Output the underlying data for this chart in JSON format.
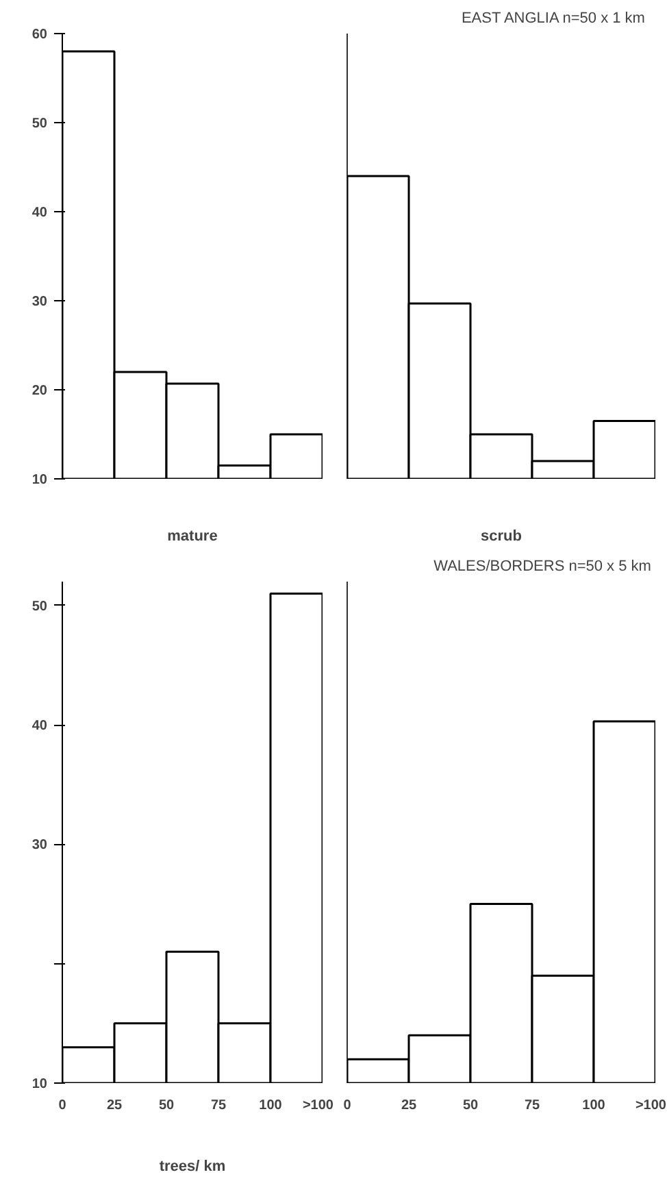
{
  "chart_data": [
    {
      "type": "histogram",
      "bins": [
        0,
        25,
        50,
        75,
        100,
        125
      ],
      "values": [
        58,
        22,
        20.7,
        11.5,
        15
      ],
      "color": "#ffffff",
      "xlabel": "mature",
      "xlim": [
        0,
        125
      ],
      "ylim": [
        10,
        60
      ],
      "yticks": [
        10,
        20,
        30,
        40,
        50,
        60
      ],
      "tick_labels": "y"
    },
    {
      "type": "histogram",
      "title": "EAST ANGLIA   n=50 x 1 km",
      "bins": [
        0,
        25,
        50,
        75,
        100,
        125
      ],
      "values": [
        44,
        29.7,
        15,
        12,
        16.5
      ],
      "color": "#ffffff",
      "xlabel": "scrub",
      "xlim": [
        0,
        125
      ],
      "ylim": [
        10,
        60
      ],
      "tick_labels": false
    },
    {
      "type": "histogram",
      "bins": [
        0,
        25,
        50,
        75,
        100,
        125
      ],
      "values": [
        13,
        15,
        21,
        15,
        51
      ],
      "color": "#ffffff",
      "xlabel": "trees/ km",
      "xlim": [
        0,
        125
      ],
      "xticks": [
        0,
        25,
        50,
        75,
        100,
        {
          "value": 125,
          "label": ">100"
        }
      ],
      "ylim": [
        10,
        52
      ],
      "yticks": [
        10,
        {
          "value": 20,
          "label": null
        },
        30,
        40,
        50
      ]
    },
    {
      "type": "histogram",
      "title": "WALES/BORDERS  n=50 x 5 km",
      "bins": [
        0,
        25,
        50,
        75,
        100,
        125
      ],
      "values": [
        12,
        14,
        25,
        19,
        40.3
      ],
      "color": "#ffffff",
      "xlim": [
        0,
        125
      ],
      "xticks": [
        0,
        25,
        50,
        75,
        100,
        {
          "value": 125,
          "label": ">100"
        }
      ],
      "ylim": [
        10,
        52
      ],
      "tick_labels": "x"
    }
  ]
}
